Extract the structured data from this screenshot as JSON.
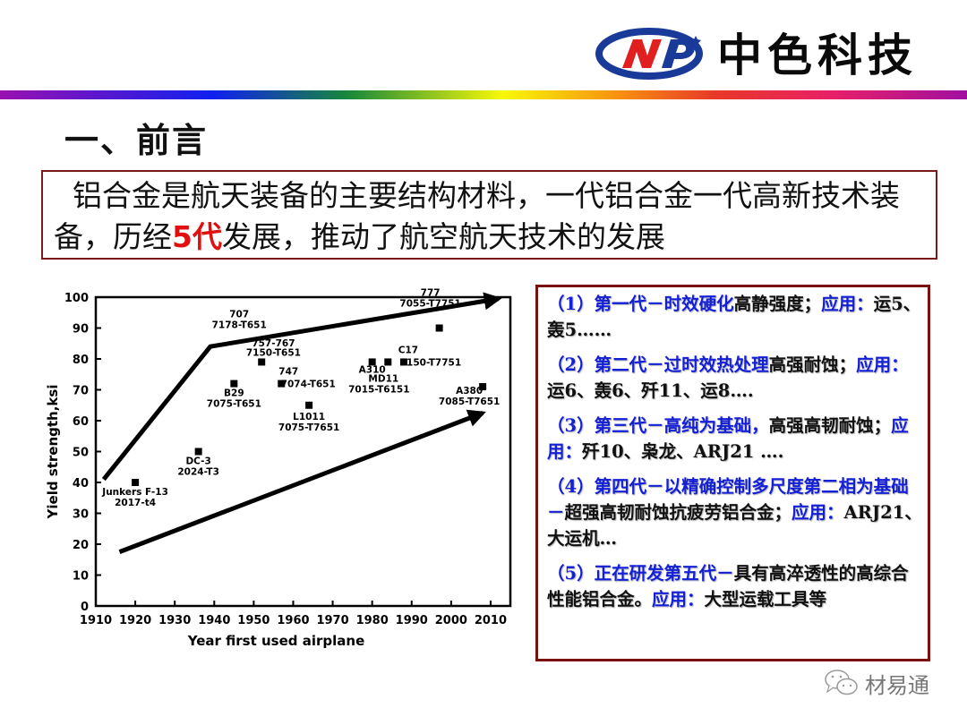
{
  "header": {
    "logo_text": "中色科技",
    "logo_mark": "NP",
    "colors": {
      "logo_blue": "#1a3a9a",
      "logo_red": "#e02020",
      "frame": "#7a1a1a",
      "highlight_red": "#e01010",
      "blue_text": "#1420d8"
    }
  },
  "title": "一、前言",
  "intro": {
    "part1": "  铝合金是航天装备的主要结构材料，一代铝合金一代高新技术装备，历经",
    "highlight": "5代",
    "part2": "发展，推动了航空航天技术的发展"
  },
  "generations": [
    {
      "label": "（1）第一代－时效硬化",
      "desc": "高静强度；",
      "app_label": "应用：",
      "apps": "运5、轰5……"
    },
    {
      "label": "（2）第二代－过时效热处理",
      "desc": "高强耐蚀；",
      "app_label": "应用：",
      "apps": "运6、轰6、歼11、运8…."
    },
    {
      "label": "（3）第三代－高纯为基础，",
      "desc": "高强高韧耐蚀；",
      "app_label": "应用：",
      "apps": "歼10、枭龙、ARJ21 …."
    },
    {
      "label": "（4）第四代－以精确控制多尺度第二相为基础－",
      "desc": "超强高韧耐蚀抗疲劳铝合金；",
      "app_label": "应用：",
      "apps": "ARJ21、大运机…"
    },
    {
      "label": "（5）正在研发第五代－",
      "desc": "具有高淬透性的高综合性能铝合金。",
      "app_label": "应用：",
      "apps": "大型运载工具等"
    }
  ],
  "watermark": {
    "icon": "wechat-icon",
    "text": "材易通"
  },
  "chart_data": {
    "type": "scatter",
    "title": "",
    "xlabel": "Year first used airplane",
    "ylabel": "Yield strength,ksi",
    "xlim": [
      1910,
      2015
    ],
    "ylim": [
      0,
      100
    ],
    "xticks": [
      1910,
      1920,
      1930,
      1940,
      1950,
      1960,
      1970,
      1980,
      1990,
      2000,
      2010
    ],
    "yticks": [
      0,
      10,
      20,
      30,
      40,
      50,
      60,
      70,
      80,
      90,
      100
    ],
    "grid": false,
    "points": [
      {
        "x": 1920,
        "y": 40,
        "label": "Junkers F-13",
        "alloy": "2017-t4"
      },
      {
        "x": 1936,
        "y": 50,
        "label": "DC-3",
        "alloy": "2024-T3"
      },
      {
        "x": 1945,
        "y": 72,
        "label": "B29",
        "alloy": "7075-T651"
      },
      {
        "x": 1952,
        "y": 79,
        "label": "707",
        "alloy": "7178-T651"
      },
      {
        "x": 1957,
        "y": 72,
        "label": "747",
        "alloy": "7074-T651"
      },
      {
        "x": 1964,
        "y": 65,
        "label": "L1011",
        "alloy": "7075-T7651"
      },
      {
        "x": 1980,
        "y": 79,
        "label": "A310",
        "alloy": ""
      },
      {
        "x": 1984,
        "y": 79,
        "label": "MD11",
        "alloy": "7015-T6151"
      },
      {
        "x": 1988,
        "y": 79,
        "label": "C17",
        "alloy": "7150-T7751"
      },
      {
        "x": 1997,
        "y": 90,
        "label": "777",
        "alloy": "7055-T7751"
      },
      {
        "x": 2008,
        "y": 71,
        "label": "A380",
        "alloy": "7085-T7651"
      }
    ],
    "annotations": [
      {
        "type": "polyline-arrow",
        "points": [
          [
            1912,
            41
          ],
          [
            1939,
            84
          ],
          [
            2012,
            99.5
          ]
        ]
      },
      {
        "type": "arrow",
        "points": [
          [
            1916,
            17.5
          ],
          [
            2008,
            62.5
          ]
        ]
      },
      {
        "type": "text",
        "x": 1955,
        "y": 84,
        "text": "757-767"
      },
      {
        "type": "text",
        "x": 1955,
        "y": 81,
        "text": "7150-T651"
      }
    ]
  }
}
